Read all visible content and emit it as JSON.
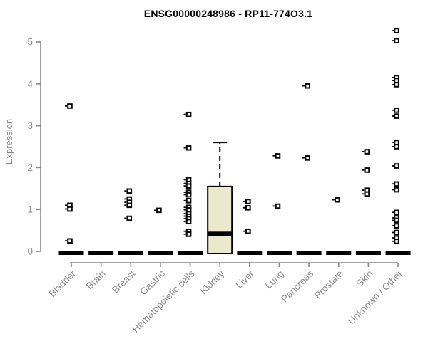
{
  "chart_data": {
    "type": "boxplot",
    "title": "ENSG00000248986 - RP11-774O3.1",
    "ylabel": "Expression",
    "ylim": [
      0,
      5
    ],
    "yticks": [
      0,
      1,
      2,
      3,
      4,
      5
    ],
    "grid": "off",
    "categories": [
      "Bladder",
      "Brain",
      "Breast",
      "Gastric",
      "Hematopoietic cells",
      "Kidney",
      "Liver",
      "Lung",
      "Pancreas",
      "Prostate",
      "Skin",
      "Unknown / Other"
    ],
    "boxes": [
      {
        "category": "Bladder",
        "q1": 0,
        "median": 0,
        "q3": 0,
        "whisker_low": 0,
        "whisker_high": 0,
        "outliers": [
          3.47,
          1.1,
          1.01,
          0.25
        ]
      },
      {
        "category": "Brain",
        "q1": 0,
        "median": 0,
        "q3": 0,
        "whisker_low": 0,
        "whisker_high": 0,
        "outliers": []
      },
      {
        "category": "Breast",
        "q1": 0,
        "median": 0,
        "q3": 0,
        "whisker_low": 0,
        "whisker_high": 0,
        "outliers": [
          1.44,
          1.25,
          1.17,
          1.1,
          0.79
        ]
      },
      {
        "category": "Gastric",
        "q1": 0,
        "median": 0,
        "q3": 0,
        "whisker_low": 0,
        "whisker_high": 0,
        "outliers": [
          0.98
        ]
      },
      {
        "category": "Hematopoietic cells",
        "q1": 0,
        "median": 0,
        "q3": 0,
        "whisker_low": 0,
        "whisker_high": 0,
        "outliers": [
          3.27,
          2.47,
          1.71,
          1.62,
          1.56,
          1.41,
          1.35,
          1.21,
          1.05,
          0.99,
          0.9,
          0.84,
          0.78,
          0.71,
          0.48,
          0.41
        ]
      },
      {
        "category": "Kidney",
        "q1": 0,
        "median": 0.42,
        "q3": 1.55,
        "whisker_low": 0,
        "whisker_high": 2.6,
        "outliers": []
      },
      {
        "category": "Liver",
        "q1": 0,
        "median": 0,
        "q3": 0,
        "whisker_low": 0,
        "whisker_high": 0,
        "outliers": [
          1.19,
          1.04,
          0.48
        ]
      },
      {
        "category": "Lung",
        "q1": 0,
        "median": 0,
        "q3": 0,
        "whisker_low": 0,
        "whisker_high": 0,
        "outliers": [
          2.28,
          1.08
        ]
      },
      {
        "category": "Pancreas",
        "q1": 0,
        "median": 0,
        "q3": 0,
        "whisker_low": 0,
        "whisker_high": 0,
        "outliers": [
          3.95,
          2.23
        ]
      },
      {
        "category": "Prostate",
        "q1": 0,
        "median": 0,
        "q3": 0,
        "whisker_low": 0,
        "whisker_high": 0,
        "outliers": [
          1.23
        ]
      },
      {
        "category": "Skin",
        "q1": 0,
        "median": 0,
        "q3": 0,
        "whisker_low": 0,
        "whisker_high": 0,
        "outliers": [
          2.38,
          1.94,
          1.46,
          1.37
        ]
      },
      {
        "category": "Unknown / Other",
        "q1": 0,
        "median": 0,
        "q3": 0,
        "whisker_low": 0,
        "whisker_high": 0,
        "outliers": [
          5.27,
          5.03,
          4.15,
          4.08,
          3.98,
          3.37,
          3.23,
          2.6,
          2.5,
          2.04,
          1.61,
          1.47,
          0.93,
          0.8,
          0.74,
          0.61,
          0.45,
          0.32,
          0.24
        ]
      }
    ],
    "colors": {
      "box_fill": "#ECE8CD",
      "box_stroke": "#000000",
      "median": "#000000",
      "outlier": "#000000",
      "axis": "#878787",
      "title": "#000000",
      "background": "#ffffff"
    }
  }
}
